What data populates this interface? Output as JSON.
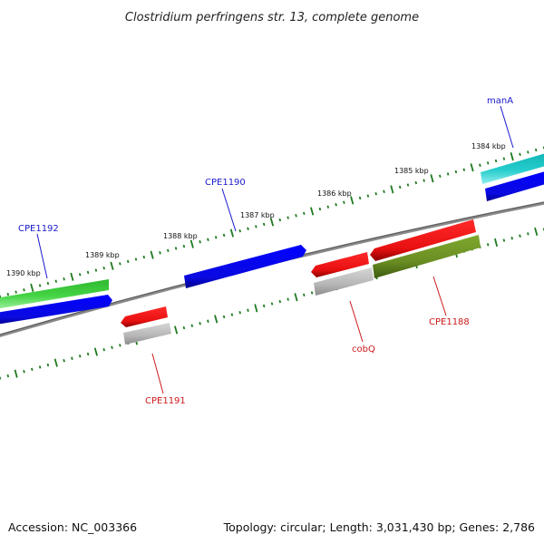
{
  "title": "Clostridium perfringens str. 13, complete genome",
  "footer": {
    "accession": "Accession: NC_003366",
    "summary": "Topology: circular; Length: 3,031,430 bp; Genes: 2,786"
  },
  "colors": {
    "backbone": "#7a7a7a",
    "tick": "#1f7a1f",
    "forward_label": "#1a1acc",
    "reverse_label": "#cc1a1a",
    "blue": "#0a0ae6",
    "green": "#33cc33",
    "cyan": "#1ec8c8",
    "red": "#ee1111",
    "gray": "#b0b0b0",
    "olive": "#6b8e23"
  },
  "kbp_labels": [
    "1390 kbp",
    "1389 kbp",
    "1388 kbp",
    "1387 kbp",
    "1386 kbp",
    "1385 kbp",
    "1384 kbp"
  ],
  "gene_labels": {
    "CPE1192": "CPE1192",
    "CPE1190": "CPE1190",
    "manA": "manA",
    "CPE1191": "CPE1191",
    "cobQ": "cobQ",
    "CPE1188": "CPE1188"
  }
}
